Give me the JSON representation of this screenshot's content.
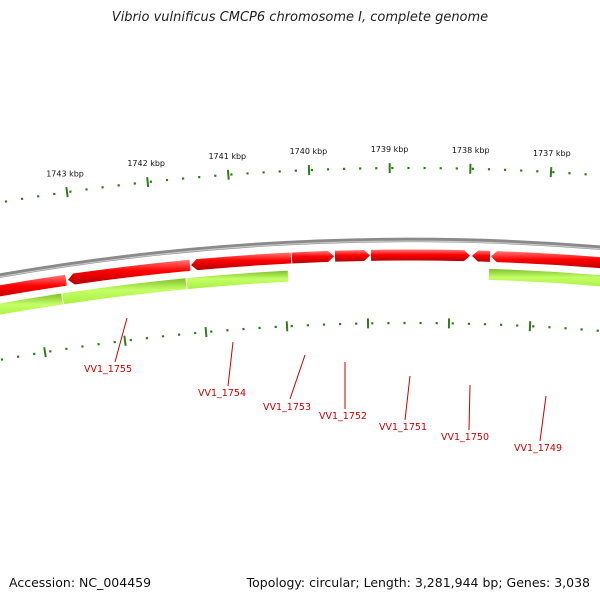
{
  "title": "Vibrio vulnificus CMCP6 chromosome I, complete genome",
  "accession_text": "Accession: NC_004459",
  "summary_text": "Topology: circular; Length: 3,281,944 bp; Genes: 3,038",
  "colors": {
    "backbone": "#7f7f7f",
    "forward_gene": "#ee0000",
    "reverse_gene": "#99ee22",
    "gene_label": "#cc0000",
    "ticks": "#2e7d1a"
  },
  "kbp_ticks": [
    {
      "label": "1743 kbp",
      "pos": 1743000
    },
    {
      "label": "1742 kbp",
      "pos": 1742000
    },
    {
      "label": "1741 kbp",
      "pos": 1741000
    },
    {
      "label": "1740 kbp",
      "pos": 1740000
    },
    {
      "label": "1739 kbp",
      "pos": 1739000
    },
    {
      "label": "1738 kbp",
      "pos": 1738000
    },
    {
      "label": "1737 kbp",
      "pos": 1737000
    }
  ],
  "genes": [
    {
      "label": "VV1_1755",
      "strand": "reverse"
    },
    {
      "label": "VV1_1754",
      "strand": "reverse"
    },
    {
      "label": "VV1_1753",
      "strand": "forward"
    },
    {
      "label": "VV1_1752",
      "strand": "forward"
    },
    {
      "label": "VV1_1751",
      "strand": "forward"
    },
    {
      "label": "VV1_1750",
      "strand": "forward"
    },
    {
      "label": "VV1_1749",
      "strand": "reverse"
    }
  ]
}
